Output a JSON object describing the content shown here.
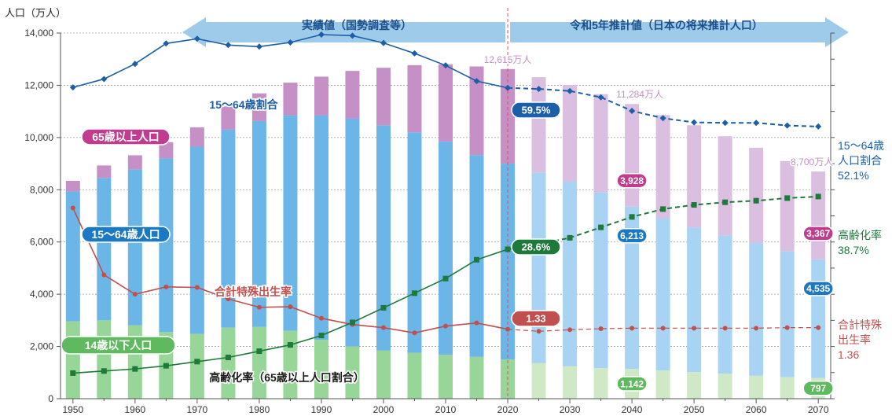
{
  "chart_data": {
    "type": "bar",
    "unit_label": "人口（万人）",
    "xlim": [
      1948,
      2072
    ],
    "ylim": [
      0,
      14000
    ],
    "y_ticks": [
      0,
      2000,
      4000,
      6000,
      8000,
      10000,
      12000,
      14000
    ],
    "y_tick_labels": [
      "0",
      "2,000",
      "4,000",
      "6,000",
      "8,000",
      "10,000",
      "12,000",
      "14,000"
    ],
    "x_ticks": [
      1950,
      1960,
      1970,
      1980,
      1990,
      2000,
      2010,
      2020,
      2030,
      2040,
      2050,
      2060,
      2070
    ],
    "ratio_axis": {
      "ylim": [
        0,
        70
      ]
    },
    "x": [
      1950,
      1955,
      1960,
      1965,
      1970,
      1975,
      1980,
      1985,
      1990,
      1995,
      2000,
      2005,
      2010,
      2015,
      2020,
      2025,
      2030,
      2035,
      2040,
      2045,
      2050,
      2055,
      2060,
      2065,
      2070
    ],
    "actual_until": 2020,
    "bar_series": [
      {
        "key": "young",
        "values": [
          2960,
          3000,
          2810,
          2550,
          2480,
          2720,
          2750,
          2600,
          2250,
          2000,
          1850,
          1760,
          1680,
          1600,
          1500,
          1360,
          1240,
          1170,
          1142,
          1080,
          1020,
          960,
          880,
          830,
          797
        ],
        "color_actual": "#98d598",
        "color_projected": "#cfe9c7"
      },
      {
        "key": "working",
        "values": [
          4970,
          5450,
          5970,
          6650,
          7170,
          7580,
          7880,
          8250,
          8590,
          8720,
          8620,
          8440,
          8170,
          7730,
          7500,
          7300,
          7070,
          6730,
          6213,
          5830,
          5540,
          5290,
          5080,
          4820,
          4535
        ],
        "color_actual": "#6bb6e6",
        "color_projected": "#a9d3f2"
      },
      {
        "key": "elderly",
        "values": [
          410,
          480,
          540,
          620,
          740,
          890,
          1060,
          1250,
          1490,
          1830,
          2200,
          2570,
          2950,
          3390,
          3620,
          3650,
          3700,
          3760,
          3928,
          3950,
          3910,
          3800,
          3650,
          3450,
          3367
        ],
        "color_actual": "#c590c6",
        "color_projected": "#dbbfe0"
      }
    ],
    "line_series": [
      {
        "key": "working_ratio",
        "values": [
          59.6,
          61.2,
          64.1,
          68.0,
          68.9,
          67.7,
          67.4,
          68.2,
          69.7,
          69.5,
          68.1,
          66.1,
          63.8,
          60.8,
          59.5,
          59.3,
          58.9,
          57.7,
          55.1,
          53.7,
          52.9,
          52.8,
          52.8,
          52.3,
          52.1
        ],
        "color": "#1b5fa8",
        "marker": "diamond"
      },
      {
        "key": "tfr",
        "values": [
          3.65,
          2.37,
          2.0,
          2.14,
          2.13,
          1.91,
          1.75,
          1.76,
          1.54,
          1.42,
          1.36,
          1.26,
          1.39,
          1.45,
          1.33,
          1.29,
          1.32,
          1.34,
          1.35,
          1.35,
          1.35,
          1.35,
          1.35,
          1.36,
          1.36
        ],
        "color": "#c0504d",
        "marker": "circle",
        "axis": "tfr"
      },
      {
        "key": "aging_rate",
        "values": [
          4.9,
          5.3,
          5.7,
          6.3,
          7.1,
          7.9,
          9.1,
          10.3,
          12.1,
          14.6,
          17.4,
          20.2,
          23.0,
          26.6,
          28.6,
          29.6,
          30.8,
          32.8,
          34.8,
          36.3,
          37.1,
          37.6,
          37.9,
          38.4,
          38.7
        ],
        "color": "#1d7a3a",
        "marker": "square"
      }
    ],
    "tfr_axis": {
      "ylim": [
        0,
        7
      ]
    },
    "annotations": {
      "actual_label": "実績値（国勢調査等）",
      "projection_label": "令和5年推計値（日本の将来推計人口）",
      "total_2020": "12,615万人",
      "total_2040": "11,284万人",
      "total_2070": "8,700万人",
      "elderly_2040": "3,928",
      "elderly_2070": "3,367",
      "working_2040": "6,213",
      "working_2070": "4,535",
      "young_2040": "1,142",
      "young_2070": "797",
      "working_ratio_callout": "59.5%",
      "aging_callout": "28.6%",
      "tfr_callout": "1.33",
      "label_elderly": "65歳以上人口",
      "label_working": "15～64歳人口",
      "label_young": "14歳以下人口",
      "label_working_ratio": "15～64歳割合",
      "label_tfr": "合計特殊出生率",
      "label_aging": "高齢化率（65歳以上人口割合）",
      "right_working_1": "15～64歳",
      "right_working_2": "人口割合",
      "right_working_3": "52.1%",
      "right_aging_1": "高齢化率",
      "right_aging_2": "38.7%",
      "right_tfr_1": "合計特殊",
      "right_tfr_2": "出生率",
      "right_tfr_3": "1.36"
    },
    "colors": {
      "arrow": "#9fcbea",
      "arrow_text": "#1a4f8c",
      "elderly_label_bg": "#c13b8f",
      "working_label_bg": "#1b78c2",
      "young_label_bg": "#5fb95f",
      "divider": "#e0514d",
      "total_text": "#c590c6"
    }
  }
}
